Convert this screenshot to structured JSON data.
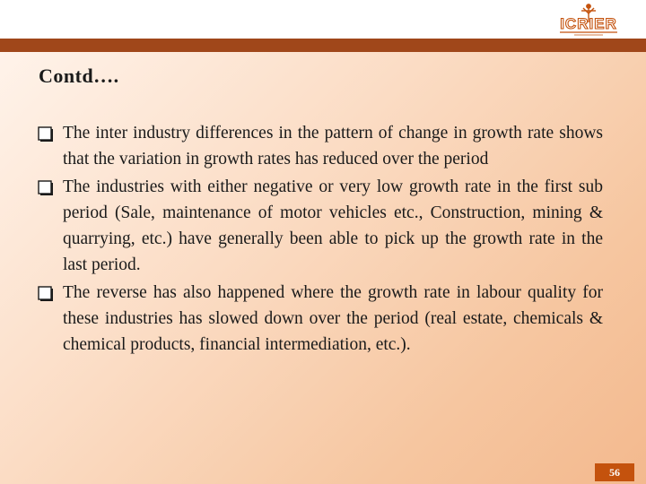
{
  "header": {
    "logo_text": "ICRIER",
    "colors": {
      "bar": "#a0471a",
      "logo": "#c4520d"
    }
  },
  "slide": {
    "title": "Contd….",
    "bullets": [
      "The inter industry differences in the pattern of change in growth rate shows that the variation in growth rates has reduced over the period",
      "The industries with either negative or very low growth rate in the first sub period (Sale, maintenance of motor vehicles etc., Construction, mining & quarrying, etc.) have generally been able to pick up the growth rate in the last period.",
      "The reverse has also happened where the growth rate in labour quality for these industries has slowed down over the period (real estate, chemicals & chemical products, financial intermediation, etc.)."
    ],
    "bullet_icon": "checkbox-bullet-icon"
  },
  "footer": {
    "page_number": "56"
  }
}
